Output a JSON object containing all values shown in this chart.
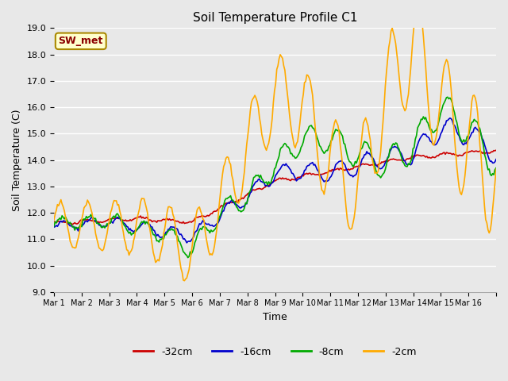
{
  "title": "Soil Temperature Profile C1",
  "xlabel": "Time",
  "ylabel": "Soil Temperature (C)",
  "ylim": [
    9.0,
    19.0
  ],
  "yticks": [
    9.0,
    10.0,
    11.0,
    12.0,
    13.0,
    14.0,
    15.0,
    16.0,
    17.0,
    18.0,
    19.0
  ],
  "legend_label": "SW_met",
  "series_labels": [
    "-32cm",
    "-16cm",
    "-8cm",
    "-2cm"
  ],
  "series_colors": [
    "#cc0000",
    "#0000cc",
    "#00aa00",
    "#ffaa00"
  ],
  "x_tick_labels": [
    "Mar 1",
    "Mar 2",
    "Mar 3",
    "Mar 4",
    "Mar 5",
    "Mar 6",
    "Mar 7",
    "Mar 8",
    "Mar 9",
    "Mar 10",
    "Mar 11",
    "Mar 12",
    "Mar 13",
    "Mar 14",
    "Mar 15",
    "Mar 16"
  ],
  "n_days": 16,
  "points_per_day": 24
}
